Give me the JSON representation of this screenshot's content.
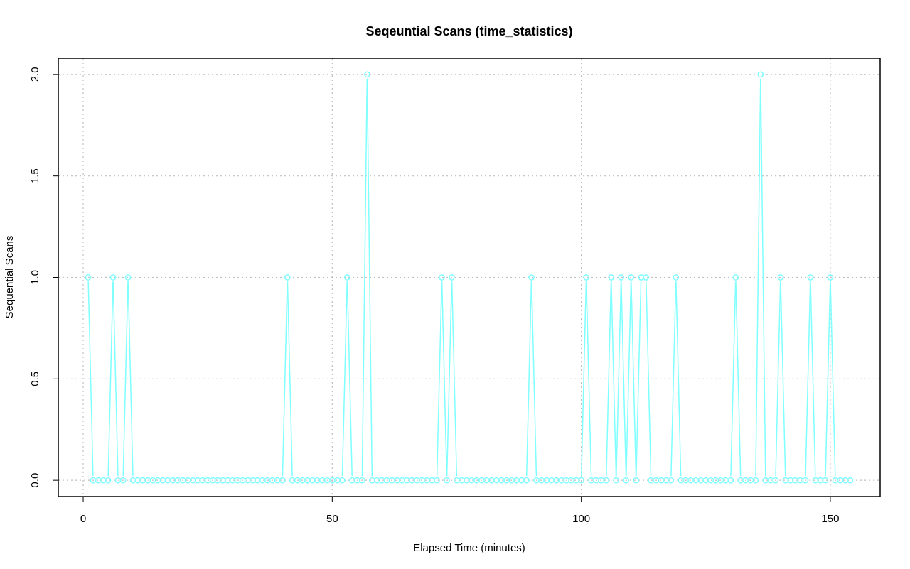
{
  "colors": {
    "series": "#7fffff",
    "grid": "#c0c0c0",
    "axis": "#000000",
    "background": "#ffffff"
  },
  "chart_data": {
    "type": "line",
    "title": "Seqeuntial Scans (time_statistics)",
    "xlabel": "Elapsed Time (minutes)",
    "ylabel": "Sequential Scans",
    "xlim": [
      -5,
      160
    ],
    "ylim": [
      -0.08,
      2.08
    ],
    "xticks": [
      0,
      50,
      100,
      150
    ],
    "xtick_labels": [
      "0",
      "50",
      "100",
      "150"
    ],
    "yticks": [
      0,
      0.5,
      1,
      1.5,
      2
    ],
    "ytick_labels": [
      "0.0",
      "0.5",
      "1.0",
      "1.5",
      "2.0"
    ],
    "grid": true,
    "markers": "open-circle",
    "x": [
      1,
      2,
      3,
      4,
      5,
      6,
      7,
      8,
      9,
      10,
      11,
      12,
      13,
      14,
      15,
      16,
      17,
      18,
      19,
      20,
      21,
      22,
      23,
      24,
      25,
      26,
      27,
      28,
      29,
      30,
      31,
      32,
      33,
      34,
      35,
      36,
      37,
      38,
      39,
      40,
      41,
      42,
      43,
      44,
      45,
      46,
      47,
      48,
      49,
      50,
      51,
      52,
      53,
      54,
      55,
      56,
      57,
      58,
      59,
      60,
      61,
      62,
      63,
      64,
      65,
      66,
      67,
      68,
      69,
      70,
      71,
      72,
      73,
      74,
      75,
      76,
      77,
      78,
      79,
      80,
      81,
      82,
      83,
      84,
      85,
      86,
      87,
      88,
      89,
      90,
      91,
      92,
      93,
      94,
      95,
      96,
      97,
      98,
      99,
      100,
      101,
      102,
      103,
      104,
      105,
      106,
      107,
      108,
      109,
      110,
      111,
      112,
      113,
      114,
      115,
      116,
      117,
      118,
      119,
      120,
      121,
      122,
      123,
      124,
      125,
      126,
      127,
      128,
      129,
      130,
      131,
      132,
      133,
      134,
      135,
      136,
      137,
      138,
      139,
      140,
      141,
      142,
      143,
      144,
      145,
      146,
      147,
      148,
      149,
      150,
      151,
      152,
      153,
      154
    ],
    "series": [
      {
        "values": [
          1,
          0,
          0,
          0,
          0,
          1,
          0,
          0,
          1,
          0,
          0,
          0,
          0,
          0,
          0,
          0,
          0,
          0,
          0,
          0,
          0,
          0,
          0,
          0,
          0,
          0,
          0,
          0,
          0,
          0,
          0,
          0,
          0,
          0,
          0,
          0,
          0,
          0,
          0,
          0,
          1,
          0,
          0,
          0,
          0,
          0,
          0,
          0,
          0,
          0,
          0,
          0,
          1,
          0,
          0,
          0,
          2,
          0,
          0,
          0,
          0,
          0,
          0,
          0,
          0,
          0,
          0,
          0,
          0,
          0,
          0,
          1,
          0,
          1,
          0,
          0,
          0,
          0,
          0,
          0,
          0,
          0,
          0,
          0,
          0,
          0,
          0,
          0,
          0,
          1,
          0,
          0,
          0,
          0,
          0,
          0,
          0,
          0,
          0,
          0,
          1,
          0,
          0,
          0,
          0,
          1,
          0,
          1,
          0,
          1,
          0,
          1,
          1,
          0,
          0,
          0,
          0,
          0,
          1,
          0,
          0,
          0,
          0,
          0,
          0,
          0,
          0,
          0,
          0,
          0,
          1,
          0,
          0,
          0,
          0,
          2,
          0,
          0,
          0,
          1,
          0,
          0,
          0,
          0,
          0,
          1,
          0,
          0,
          0,
          1,
          0,
          0,
          0,
          0
        ]
      }
    ]
  }
}
